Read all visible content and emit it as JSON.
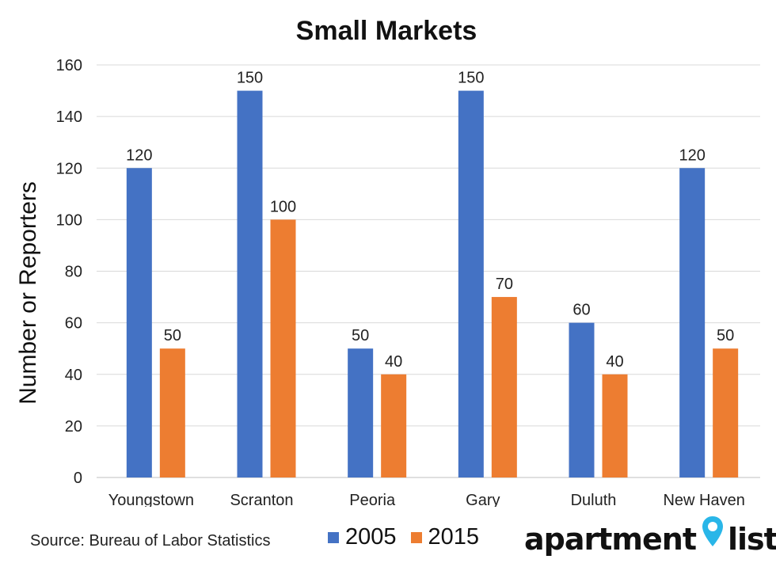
{
  "chart_data": {
    "type": "bar",
    "title": "Small Markets",
    "ylabel": "Number or Reporters",
    "xlabel": "",
    "ylim": [
      0,
      160
    ],
    "yticks": [
      0,
      20,
      40,
      60,
      80,
      100,
      120,
      140,
      160
    ],
    "categories": [
      "Youngstown",
      "Scranton",
      "Peoria",
      "Gary",
      "Duluth",
      "New Haven"
    ],
    "series": [
      {
        "name": "2005",
        "values": [
          120,
          150,
          50,
          150,
          60,
          120
        ],
        "color": "#4472C4"
      },
      {
        "name": "2015",
        "values": [
          50,
          100,
          40,
          70,
          40,
          50
        ],
        "color": "#ED7D31"
      }
    ],
    "grid": true,
    "legend_position": "bottom"
  },
  "footer": {
    "source": "Source: Bureau of Labor Statistics"
  },
  "logo": {
    "word1": "apartment",
    "word2": "list",
    "pin_color": "#29B6E8"
  }
}
